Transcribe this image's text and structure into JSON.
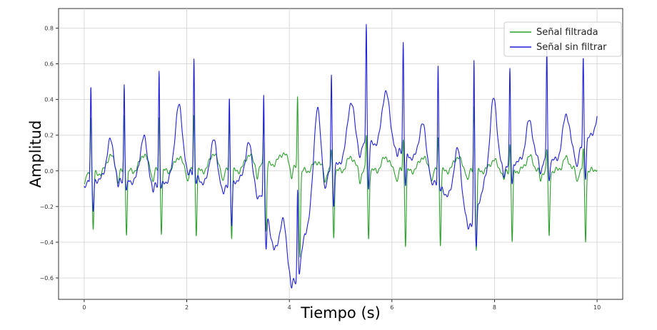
{
  "chart_data": {
    "type": "line",
    "title": "",
    "xlabel": "Tiempo (s)",
    "ylabel": "Amplitud",
    "xlim": [
      -0.5,
      10.5
    ],
    "ylim": [
      -0.72,
      0.91
    ],
    "x_ticks": [
      0,
      2,
      4,
      6,
      8,
      10
    ],
    "y_ticks": [
      -0.6,
      -0.4,
      -0.2,
      0.0,
      0.2,
      0.4,
      0.6,
      0.8
    ],
    "x_tick_labels": [
      "0",
      "2",
      "4",
      "6",
      "8",
      "10"
    ],
    "y_tick_labels": [
      "−0.6",
      "−0.4",
      "−0.2",
      "0.0",
      "0.2",
      "0.4",
      "0.6",
      "0.8"
    ],
    "grid": true,
    "legend_position": "top-right",
    "beats": [
      0.13,
      0.78,
      1.46,
      2.14,
      2.83,
      3.5,
      4.16,
      4.82,
      5.5,
      6.22,
      6.9,
      7.6,
      8.3,
      9.02,
      9.73
    ],
    "series": [
      {
        "name": "Señal filtrada",
        "color": "#2ca02c",
        "baseline": [
          [
            0,
            -0.02
          ],
          [
            1,
            0.0
          ],
          [
            2,
            0.0
          ],
          [
            3,
            0.0
          ],
          [
            3.9,
            0.05
          ],
          [
            4.2,
            0.0
          ],
          [
            5,
            0.0
          ],
          [
            6,
            0.0
          ],
          [
            7,
            0.0
          ],
          [
            8,
            0.0
          ],
          [
            9,
            0.0
          ],
          [
            10,
            0.0
          ]
        ],
        "r_peak": [
          0.32,
          0.31,
          0.3,
          0.32,
          0.3,
          0.3,
          0.41,
          0.12,
          0.2,
          0.18,
          0.2,
          0.37,
          0.15,
          0.12,
          0.12
        ],
        "s_trough": [
          -0.33,
          -0.35,
          -0.34,
          -0.35,
          -0.37,
          -0.34,
          -0.46,
          -0.37,
          -0.38,
          -0.41,
          -0.41,
          -0.44,
          -0.4,
          -0.38,
          -0.39
        ],
        "t_wave": [
          0.08,
          0.09,
          0.08,
          0.1,
          0.08,
          0.08,
          0.06,
          0.08,
          0.08,
          0.08,
          0.08,
          0.06,
          0.08,
          0.07,
          0.07
        ]
      },
      {
        "name": "Señal sin filtrar",
        "color": "#1f1fd9",
        "baseline": [
          [
            0,
            -0.05
          ],
          [
            0.5,
            -0.05
          ],
          [
            1,
            -0.06
          ],
          [
            1.5,
            -0.08
          ],
          [
            2,
            0.02
          ],
          [
            2.5,
            -0.12
          ],
          [
            3,
            -0.05
          ],
          [
            3.5,
            -0.15
          ],
          [
            3.7,
            -0.45
          ],
          [
            3.95,
            -0.6
          ],
          [
            4.15,
            -0.63
          ],
          [
            4.3,
            -0.35
          ],
          [
            4.5,
            -0.25
          ],
          [
            4.8,
            0.0
          ],
          [
            5,
            0.05
          ],
          [
            5.5,
            0.15
          ],
          [
            6,
            0.15
          ],
          [
            6.5,
            0.05
          ],
          [
            6.9,
            -0.08
          ],
          [
            7.2,
            -0.18
          ],
          [
            7.55,
            -0.3
          ],
          [
            7.8,
            -0.08
          ],
          [
            8.3,
            0.05
          ],
          [
            9,
            0.05
          ],
          [
            9.6,
            0.08
          ],
          [
            10,
            0.25
          ]
        ],
        "r_peak": [
          0.47,
          0.49,
          0.56,
          0.63,
          0.41,
          0.44,
          -0.1,
          0.55,
          0.84,
          0.72,
          0.59,
          0.61,
          0.56,
          0.68,
          0.64
        ],
        "s_trough": [
          -0.23,
          -0.12,
          -0.1,
          -0.06,
          -0.32,
          -0.38,
          -0.65,
          -0.2,
          -0.1,
          -0.08,
          -0.1,
          -0.47,
          -0.08,
          -0.05,
          -0.05
        ],
        "t_wave": [
          0.17,
          0.2,
          0.3,
          0.27,
          0.17,
          0.13,
          -0.05,
          0.3,
          0.45,
          0.35,
          0.25,
          0.18,
          0.28,
          0.3,
          0.3
        ]
      }
    ]
  }
}
